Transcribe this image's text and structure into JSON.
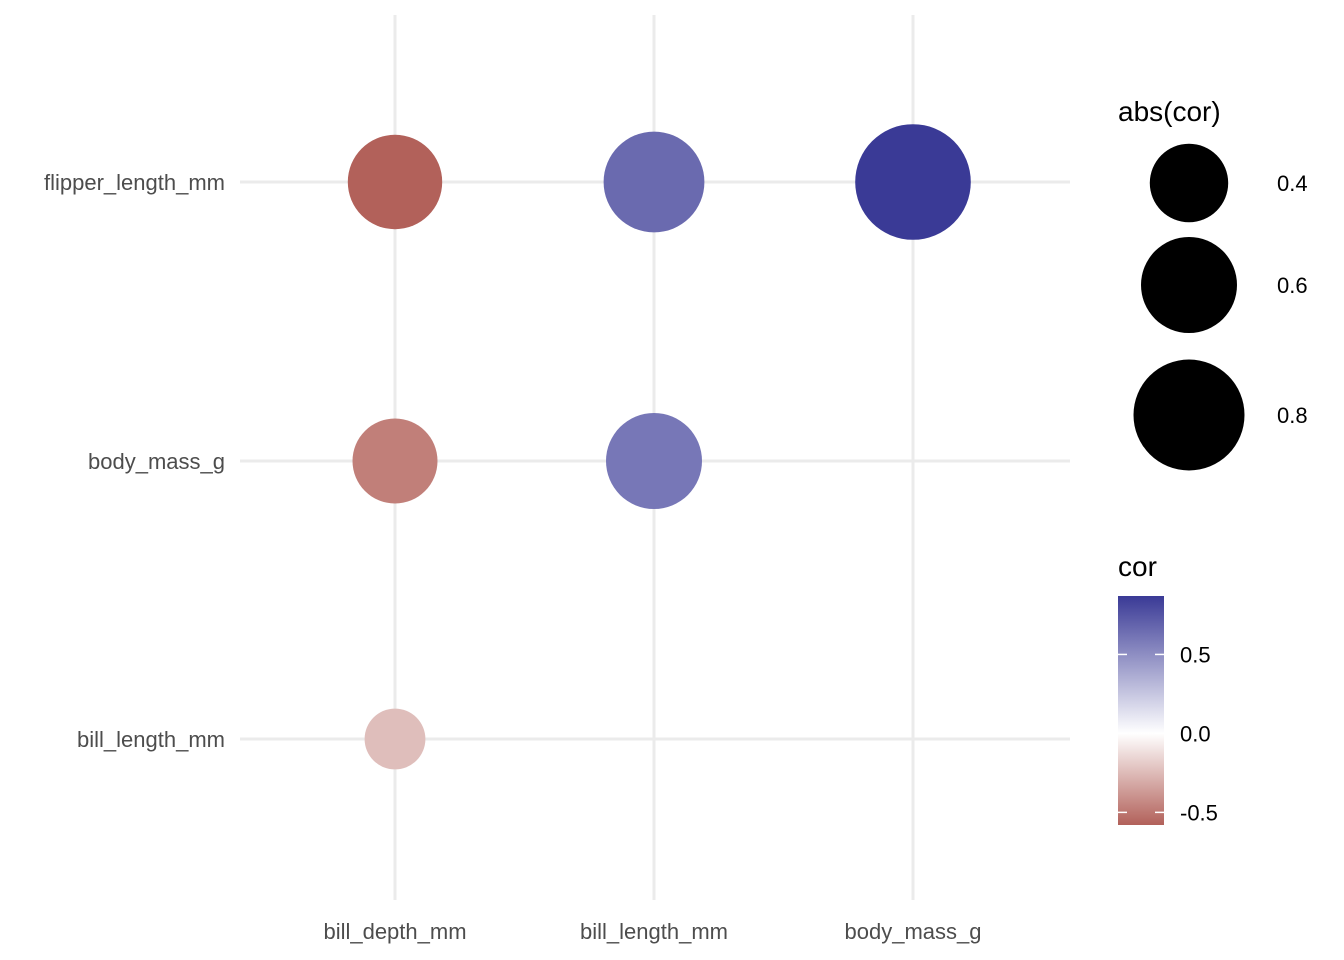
{
  "chart_data": {
    "type": "scatter",
    "subtype": "correlation-bubble",
    "title": "",
    "xlabel": "",
    "ylabel": "",
    "x_categories": [
      "bill_depth_mm",
      "bill_length_mm",
      "body_mass_g"
    ],
    "y_categories": [
      "bill_length_mm",
      "body_mass_g",
      "flipper_length_mm"
    ],
    "points": [
      {
        "x": "bill_depth_mm",
        "y": "flipper_length_mm",
        "cor": -0.58
      },
      {
        "x": "bill_length_mm",
        "y": "flipper_length_mm",
        "cor": 0.66
      },
      {
        "x": "body_mass_g",
        "y": "flipper_length_mm",
        "cor": 0.87
      },
      {
        "x": "bill_depth_mm",
        "y": "body_mass_g",
        "cor": -0.47
      },
      {
        "x": "bill_length_mm",
        "y": "body_mass_g",
        "cor": 0.6
      },
      {
        "x": "bill_depth_mm",
        "y": "bill_length_mm",
        "cor": -0.24
      }
    ],
    "size_legend": {
      "title": "abs(cor)",
      "breaks": [
        0.4,
        0.6,
        0.8
      ],
      "labels": [
        "0.4",
        "0.6",
        "0.8"
      ]
    },
    "color_legend": {
      "title": "cor",
      "breaks": [
        0.5,
        0.0,
        -0.5
      ],
      "labels": [
        "0.5",
        "0.0",
        "-0.5"
      ],
      "limits": [
        -0.58,
        0.87
      ],
      "low_color": "#b2615a",
      "mid_color": "#ffffff",
      "high_color": "#3a3a96"
    },
    "grid": true,
    "legend_position": "right"
  }
}
